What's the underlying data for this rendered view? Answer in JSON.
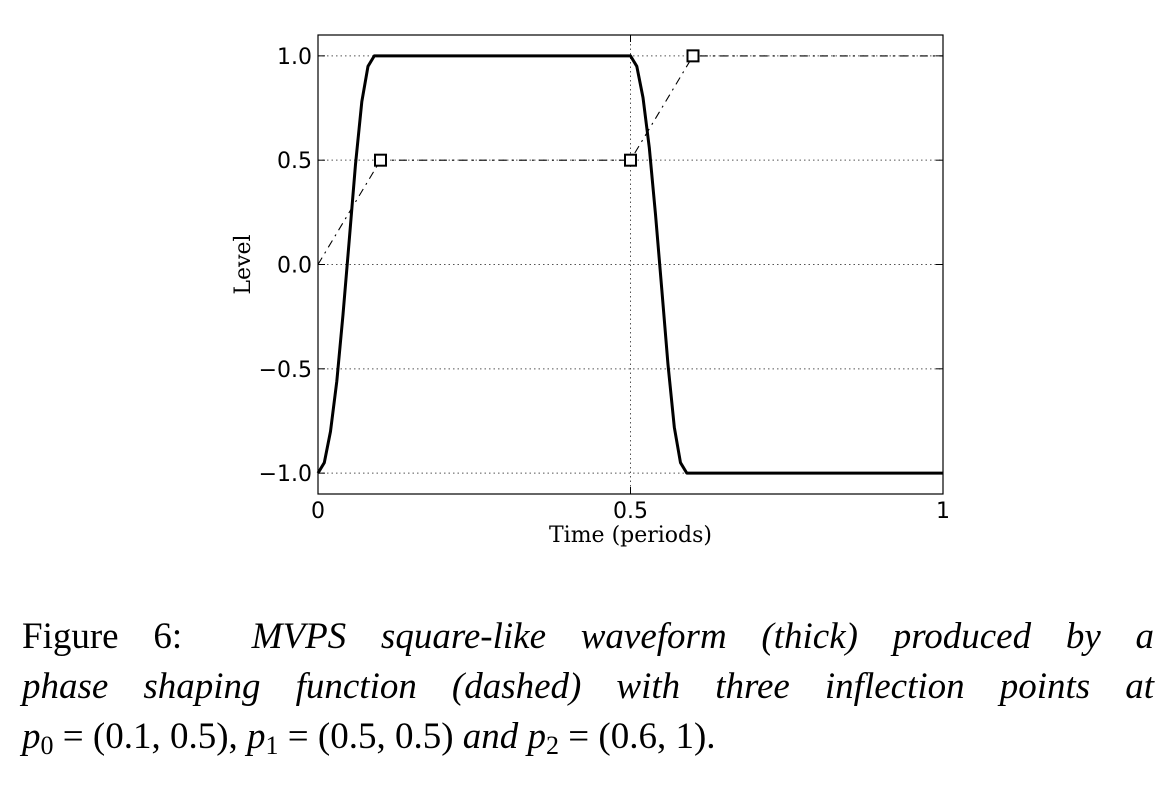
{
  "chart_data": {
    "type": "line",
    "xlabel": "Time (periods)",
    "ylabel": "Level",
    "xlim": [
      0,
      1
    ],
    "ylim": [
      -1.1,
      1.1
    ],
    "x_ticks": [
      0,
      0.5,
      1
    ],
    "x_tick_labels": [
      "0",
      "0.5",
      "1"
    ],
    "y_ticks": [
      -1.0,
      -0.5,
      0.0,
      0.5,
      1.0
    ],
    "y_tick_labels": [
      "−1.0",
      "−0.5",
      "0.0",
      "0.5",
      "1.0"
    ],
    "grid": true,
    "series": [
      {
        "style": "thick solid",
        "x": [
          0,
          0.01,
          0.02,
          0.03,
          0.04,
          0.05,
          0.06,
          0.07,
          0.08,
          0.09,
          0.1,
          0.5,
          0.51,
          0.52,
          0.53,
          0.54,
          0.55,
          0.56,
          0.57,
          0.58,
          0.59,
          0.6,
          1.0
        ],
        "y": [
          -1.0,
          -0.95,
          -0.8,
          -0.56,
          -0.24,
          0.12,
          0.48,
          0.78,
          0.95,
          1.0,
          1.0,
          1.0,
          0.95,
          0.8,
          0.56,
          0.24,
          -0.12,
          -0.48,
          -0.78,
          -0.95,
          -1.0,
          -1.0,
          -1.0
        ]
      },
      {
        "style": "dashed",
        "x": [
          0,
          0.1,
          0.5,
          0.6,
          1.0
        ],
        "y": [
          0,
          0.5,
          0.5,
          1.0,
          1.0
        ]
      }
    ],
    "markers": [
      {
        "label": "p0",
        "x": 0.1,
        "y": 0.5
      },
      {
        "label": "p1",
        "x": 0.5,
        "y": 0.5
      },
      {
        "label": "p2",
        "x": 0.6,
        "y": 1.0
      }
    ]
  },
  "caption": {
    "label": "Figure 6:",
    "text_line1": "MVPS square-like waveform (thick) produced by a",
    "text_line2": "phase shaping function (dashed) with three inflection points at",
    "p0": "p",
    "p0_sub": "0",
    "p0_value": " = (0.1, 0.5), ",
    "p1": "p",
    "p1_sub": "1",
    "p1_value": " = (0.5, 0.5) ",
    "and_text": "and ",
    "p2": "p",
    "p2_sub": "2",
    "p2_value": " = (0.6, 1)."
  }
}
